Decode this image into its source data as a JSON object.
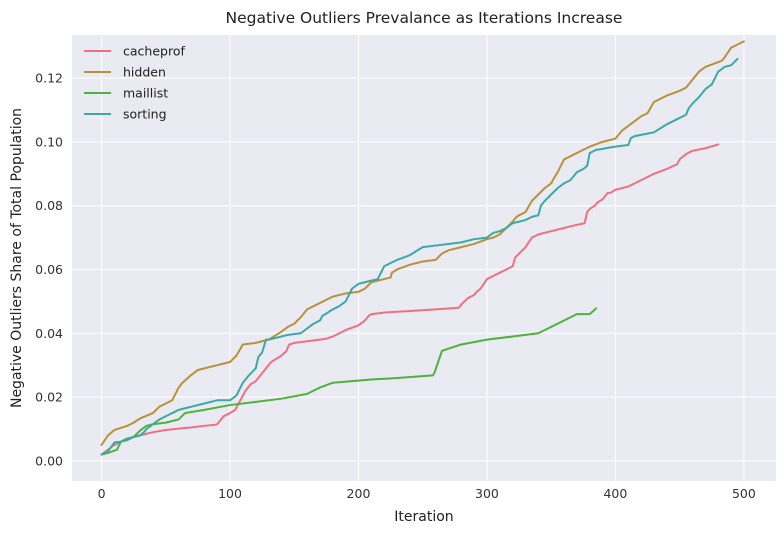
{
  "chart_data": {
    "type": "line",
    "title": "Negative Outliers Prevalance as Iterations Increase",
    "xlabel": "Iteration",
    "ylabel": "Negative Outliers Share of Total Population",
    "xlim": [
      -23,
      525
    ],
    "ylim": [
      -0.0063,
      0.1335
    ],
    "xticks": [
      0,
      100,
      200,
      300,
      400,
      500
    ],
    "yticks": [
      0.0,
      0.02,
      0.04,
      0.06,
      0.08,
      0.1,
      0.12
    ],
    "xtick_labels": [
      "0",
      "100",
      "200",
      "300",
      "400",
      "500"
    ],
    "ytick_labels": [
      "0.00",
      "0.02",
      "0.04",
      "0.06",
      "0.08",
      "0.10",
      "0.12"
    ],
    "grid": true,
    "legend_position": "top-left",
    "background": "#eaeaf2",
    "series": [
      {
        "name": "cacheprof",
        "color": "#f07080",
        "x": [
          0,
          10,
          20,
          30,
          40,
          50,
          60,
          70,
          80,
          88,
          90,
          95,
          100,
          104,
          108,
          112,
          116,
          120,
          124,
          128,
          132,
          136,
          140,
          144,
          146,
          148,
          150,
          160,
          170,
          175,
          180,
          190,
          200,
          205,
          208,
          210,
          220,
          240,
          260,
          278,
          280,
          285,
          290,
          292,
          295,
          300,
          305,
          310,
          315,
          320,
          322,
          325,
          330,
          335,
          340,
          350,
          360,
          370,
          376,
          378,
          380,
          384,
          386,
          390,
          394,
          396,
          400,
          410,
          420,
          425,
          430,
          440,
          448,
          450,
          455,
          460,
          470,
          480
        ],
        "y": [
          0.002,
          0.005,
          0.007,
          0.008,
          0.009,
          0.0097,
          0.0101,
          0.0105,
          0.011,
          0.0113,
          0.0115,
          0.014,
          0.015,
          0.016,
          0.019,
          0.022,
          0.024,
          0.025,
          0.027,
          0.029,
          0.031,
          0.032,
          0.033,
          0.0345,
          0.0365,
          0.0367,
          0.037,
          0.0375,
          0.038,
          0.0383,
          0.039,
          0.041,
          0.0425,
          0.044,
          0.0455,
          0.046,
          0.0465,
          0.047,
          0.0475,
          0.048,
          0.049,
          0.051,
          0.052,
          0.053,
          0.054,
          0.057,
          0.058,
          0.059,
          0.06,
          0.061,
          0.0638,
          0.065,
          0.067,
          0.07,
          0.071,
          0.072,
          0.073,
          0.074,
          0.0745,
          0.078,
          0.079,
          0.08,
          0.081,
          0.082,
          0.084,
          0.084,
          0.085,
          0.086,
          0.088,
          0.089,
          0.09,
          0.0915,
          0.093,
          0.0945,
          0.0962,
          0.0972,
          0.098,
          0.0992
        ]
      },
      {
        "name": "hidden",
        "color": "#b8923a",
        "x": [
          0,
          5,
          10,
          20,
          25,
          30,
          40,
          45,
          50,
          55,
          60,
          63,
          70,
          75,
          80,
          90,
          100,
          105,
          110,
          120,
          125,
          130,
          140,
          145,
          150,
          155,
          160,
          165,
          170,
          175,
          180,
          190,
          200,
          205,
          210,
          215,
          220,
          225,
          226,
          230,
          240,
          250,
          260,
          265,
          270,
          280,
          290,
          300,
          305,
          310,
          315,
          320,
          323,
          325,
          330,
          335,
          340,
          345,
          350,
          352,
          355,
          360,
          370,
          380,
          390,
          400,
          405,
          410,
          420,
          425,
          430,
          440,
          450,
          455,
          458,
          460,
          465,
          470,
          480,
          483,
          485,
          490,
          500
        ],
        "y": [
          0.005,
          0.008,
          0.0097,
          0.011,
          0.012,
          0.0133,
          0.015,
          0.017,
          0.018,
          0.019,
          0.023,
          0.0245,
          0.027,
          0.0285,
          0.029,
          0.03,
          0.031,
          0.033,
          0.0365,
          0.037,
          0.0375,
          0.038,
          0.0405,
          0.042,
          0.043,
          0.045,
          0.0475,
          0.0485,
          0.0495,
          0.0505,
          0.0515,
          0.0525,
          0.053,
          0.054,
          0.056,
          0.0565,
          0.057,
          0.0575,
          0.059,
          0.06,
          0.0615,
          0.0625,
          0.063,
          0.065,
          0.066,
          0.067,
          0.068,
          0.0695,
          0.07,
          0.071,
          0.073,
          0.075,
          0.0765,
          0.077,
          0.078,
          0.0815,
          0.0835,
          0.0855,
          0.087,
          0.0885,
          0.0905,
          0.0945,
          0.0965,
          0.0985,
          0.1,
          0.101,
          0.1035,
          0.105,
          0.108,
          0.109,
          0.1125,
          0.1145,
          0.116,
          0.117,
          0.1185,
          0.1195,
          0.122,
          0.1235,
          0.125,
          0.1255,
          0.1265,
          0.1295,
          0.1315
        ]
      },
      {
        "name": "maillist",
        "color": "#4db33a",
        "x": [
          0,
          5,
          12,
          15,
          20,
          25,
          30,
          35,
          40,
          50,
          60,
          65,
          80,
          100,
          140,
          160,
          170,
          180,
          195,
          210,
          230,
          258,
          259,
          262,
          265,
          280,
          300,
          320,
          340,
          350,
          360,
          370,
          380,
          385
        ],
        "y": [
          0.002,
          0.0025,
          0.0035,
          0.006,
          0.007,
          0.0075,
          0.0095,
          0.011,
          0.0115,
          0.012,
          0.013,
          0.015,
          0.016,
          0.0175,
          0.0195,
          0.021,
          0.023,
          0.0245,
          0.025,
          0.0255,
          0.026,
          0.0268,
          0.0275,
          0.031,
          0.0345,
          0.0365,
          0.038,
          0.039,
          0.04,
          0.042,
          0.044,
          0.046,
          0.046,
          0.0478
        ]
      },
      {
        "name": "sorting",
        "color": "#3aaaa6",
        "x": [
          0,
          5,
          10,
          15,
          20,
          25,
          30,
          33,
          35,
          40,
          45,
          50,
          55,
          60,
          65,
          70,
          80,
          90,
          100,
          105,
          110,
          114,
          120,
          122,
          125,
          128,
          130,
          135,
          140,
          145,
          155,
          160,
          165,
          170,
          172,
          175,
          180,
          185,
          190,
          195,
          200,
          205,
          210,
          215,
          220,
          230,
          240,
          250,
          260,
          270,
          280,
          290,
          300,
          305,
          310,
          315,
          320,
          325,
          330,
          335,
          340,
          342,
          345,
          350,
          355,
          360,
          365,
          370,
          375,
          378,
          380,
          385,
          390,
          395,
          400,
          405,
          410,
          412,
          415,
          430,
          440,
          450,
          455,
          457,
          460,
          465,
          470,
          475,
          480,
          485,
          490,
          495
        ],
        "y": [
          0.002,
          0.003,
          0.0058,
          0.006,
          0.0065,
          0.0075,
          0.008,
          0.009,
          0.01,
          0.0115,
          0.013,
          0.014,
          0.015,
          0.016,
          0.0165,
          0.017,
          0.018,
          0.019,
          0.019,
          0.0205,
          0.0245,
          0.0265,
          0.029,
          0.0325,
          0.034,
          0.038,
          0.038,
          0.0385,
          0.039,
          0.0395,
          0.04,
          0.0415,
          0.043,
          0.044,
          0.0455,
          0.0462,
          0.0475,
          0.0485,
          0.05,
          0.054,
          0.0555,
          0.056,
          0.0565,
          0.057,
          0.061,
          0.063,
          0.0645,
          0.067,
          0.0675,
          0.068,
          0.0685,
          0.0695,
          0.07,
          0.0715,
          0.072,
          0.073,
          0.0745,
          0.075,
          0.0755,
          0.0765,
          0.077,
          0.08,
          0.0815,
          0.0835,
          0.0855,
          0.087,
          0.088,
          0.0905,
          0.0915,
          0.0925,
          0.0965,
          0.0975,
          0.0978,
          0.0982,
          0.0985,
          0.0988,
          0.099,
          0.1012,
          0.1018,
          0.103,
          0.1055,
          0.1075,
          0.1085,
          0.1105,
          0.112,
          0.114,
          0.1165,
          0.118,
          0.122,
          0.1235,
          0.124,
          0.126
        ]
      }
    ]
  }
}
